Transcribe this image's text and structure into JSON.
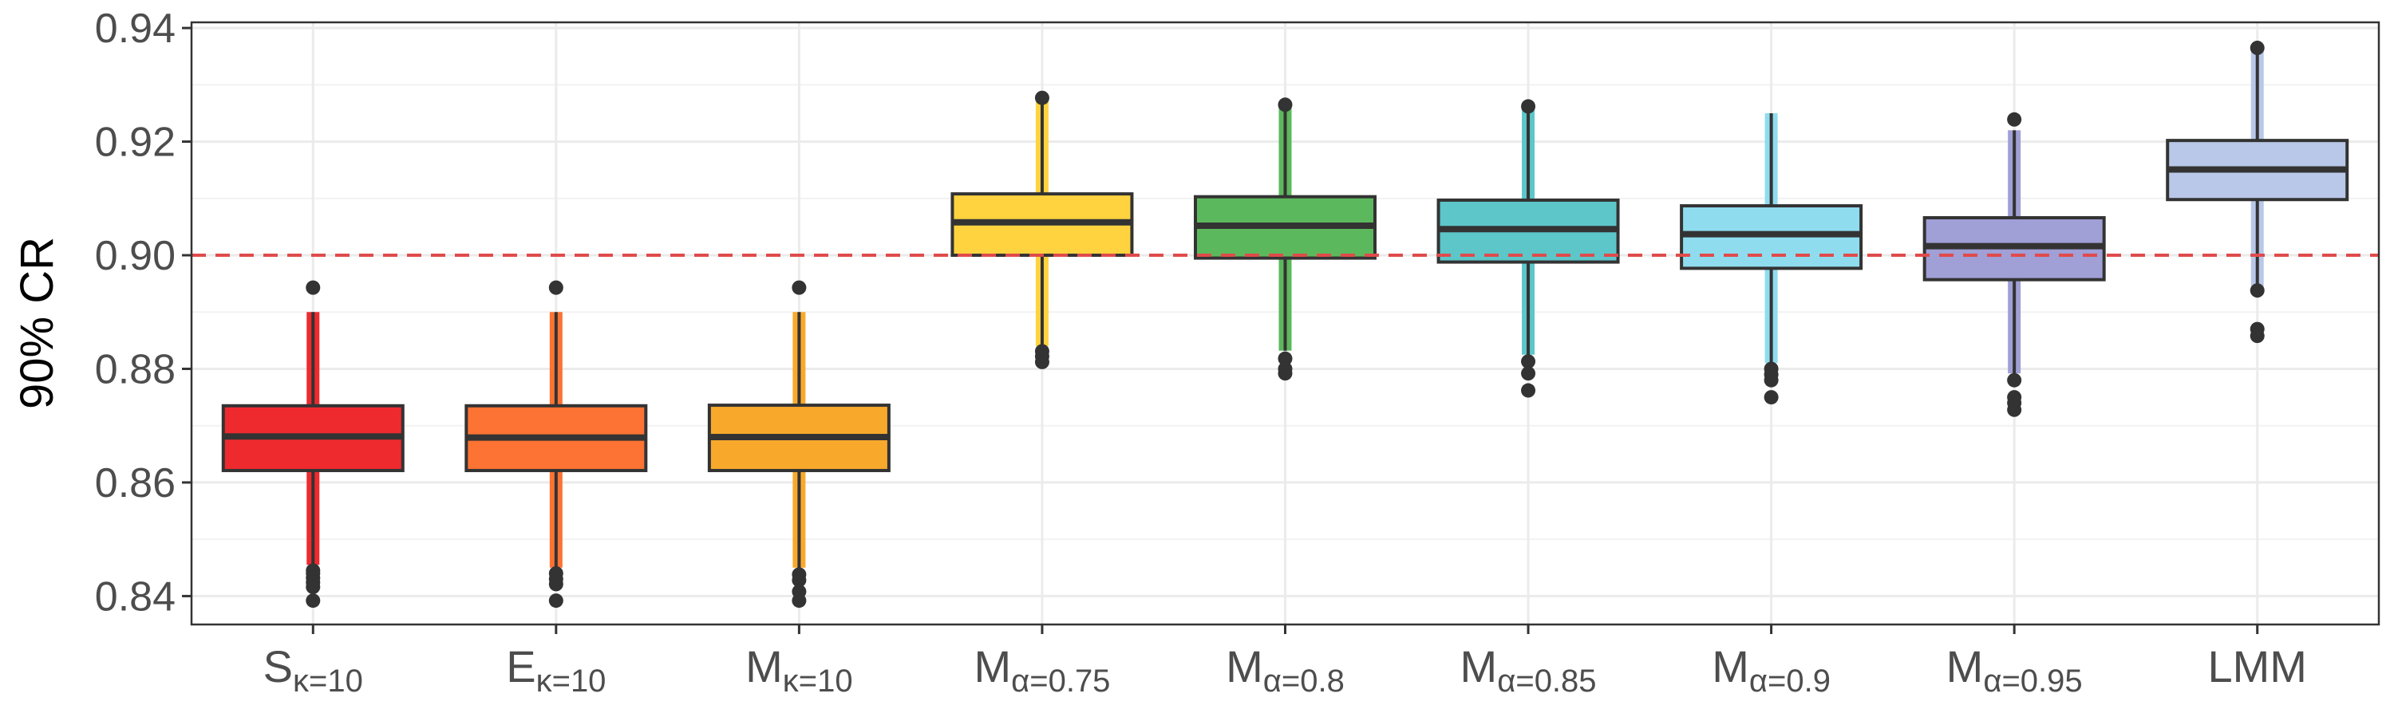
{
  "chart_data": {
    "type": "boxplot",
    "title": "",
    "xlabel": "",
    "ylabel": "90% CR",
    "ylim": [
      0.835,
      0.941
    ],
    "yticks": [
      0.84,
      0.86,
      0.88,
      0.9,
      0.92,
      0.94
    ],
    "ytick_labels": [
      "0.84",
      "0.86",
      "0.88",
      "0.90",
      "0.92",
      "0.94"
    ],
    "grid": true,
    "legend": "none",
    "reference_line": {
      "y": 0.9,
      "style": "dashed",
      "color": "#e04b4b"
    },
    "categories": [
      {
        "base": "S",
        "sub": "κ=10"
      },
      {
        "base": "E",
        "sub": "κ=10"
      },
      {
        "base": "M",
        "sub": "κ=10"
      },
      {
        "base": "M",
        "sub": "α=0.75"
      },
      {
        "base": "M",
        "sub": "α=0.8"
      },
      {
        "base": "M",
        "sub": "α=0.85"
      },
      {
        "base": "M",
        "sub": "α=0.9"
      },
      {
        "base": "M",
        "sub": "α=0.95"
      },
      {
        "base": "LMM",
        "sub": ""
      }
    ],
    "boxes": [
      {
        "color": "#ee2a2f",
        "q1": 0.8621,
        "median": 0.8681,
        "q3": 0.8735,
        "whisker_low": 0.8455,
        "whisker_high": 0.89,
        "outliers": [
          0.8445,
          0.844,
          0.8432,
          0.8424,
          0.8416,
          0.8392,
          0.8943
        ]
      },
      {
        "color": "#fc7333",
        "q1": 0.8621,
        "median": 0.8679,
        "q3": 0.8735,
        "whisker_low": 0.845,
        "whisker_high": 0.89,
        "outliers": [
          0.844,
          0.843,
          0.8421,
          0.8392,
          0.8943
        ]
      },
      {
        "color": "#f8a92c",
        "q1": 0.8621,
        "median": 0.868,
        "q3": 0.8736,
        "whisker_low": 0.845,
        "whisker_high": 0.89,
        "outliers": [
          0.8438,
          0.8428,
          0.8408,
          0.8392,
          0.8943
        ]
      },
      {
        "color": "#fed33f",
        "q1": 0.9,
        "median": 0.9058,
        "q3": 0.9108,
        "whisker_low": 0.884,
        "whisker_high": 0.927,
        "outliers": [
          0.8831,
          0.8822,
          0.8812,
          0.9277
        ]
      },
      {
        "color": "#5cb85c",
        "q1": 0.8995,
        "median": 0.9052,
        "q3": 0.9103,
        "whisker_low": 0.8832,
        "whisker_high": 0.9265,
        "outliers": [
          0.8818,
          0.88,
          0.8792,
          0.9265
        ]
      },
      {
        "color": "#5cc6c9",
        "q1": 0.8988,
        "median": 0.9046,
        "q3": 0.9097,
        "whisker_low": 0.8825,
        "whisker_high": 0.926,
        "outliers": [
          0.8813,
          0.8792,
          0.8762,
          0.9262
        ]
      },
      {
        "color": "#90dcef",
        "q1": 0.8977,
        "median": 0.9037,
        "q3": 0.9087,
        "whisker_low": 0.881,
        "whisker_high": 0.925,
        "outliers": [
          0.88,
          0.879,
          0.878,
          0.875
        ]
      },
      {
        "color": "#a09fd6",
        "q1": 0.8957,
        "median": 0.9016,
        "q3": 0.9066,
        "whisker_low": 0.8792,
        "whisker_high": 0.922,
        "outliers": [
          0.878,
          0.875,
          0.874,
          0.8728,
          0.9239
        ]
      },
      {
        "color": "#b9c8e9",
        "q1": 0.9098,
        "median": 0.9151,
        "q3": 0.9202,
        "whisker_low": 0.8942,
        "whisker_high": 0.936,
        "outliers": [
          0.8938,
          0.887,
          0.8858,
          0.9365
        ]
      }
    ]
  }
}
